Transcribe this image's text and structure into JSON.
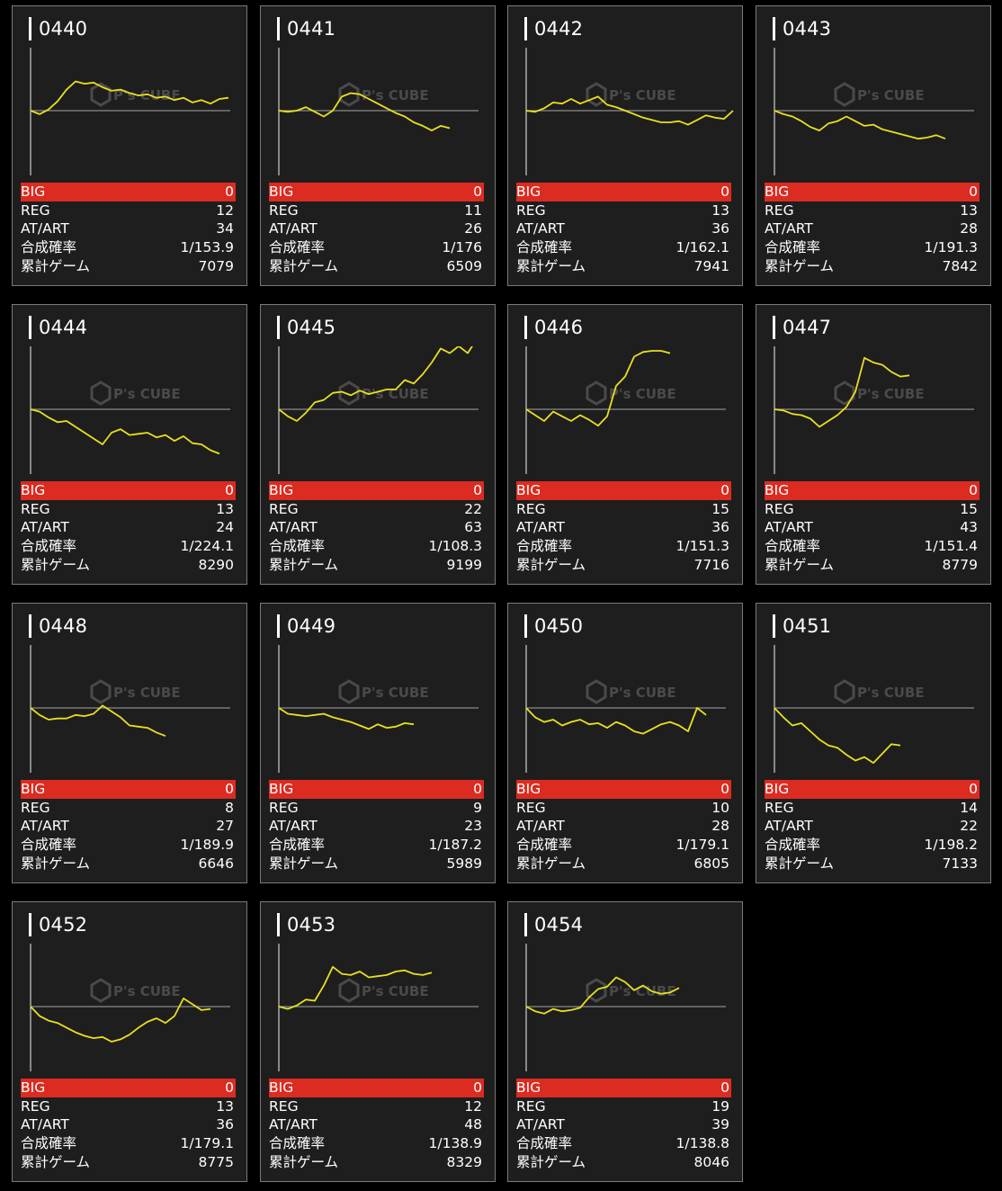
{
  "labels": {
    "big": "BIG",
    "reg": "REG",
    "at_art": "AT/ART",
    "combined_probability": "合成確率",
    "total_games": "累計ゲーム"
  },
  "watermark": {
    "text": "P's CUBE"
  },
  "colors": {
    "background": "#000000",
    "card_background": "#1e1e1e",
    "card_border": "#7a7a7a",
    "big_row": "#dc2b20",
    "graph_line": "#e8e020",
    "baseline": "#8a8a8a",
    "axis": "#cfcfcf"
  },
  "machines": [
    {
      "id": "0440",
      "big": "0",
      "reg": "12",
      "at_art": "34",
      "prob": "1/153.9",
      "games": "7079",
      "trend": [
        0,
        -3,
        1,
        8,
        18,
        25,
        23,
        24,
        20,
        17,
        18,
        15,
        13,
        14,
        11,
        12,
        9,
        11,
        7,
        9,
        6,
        10,
        11
      ]
    },
    {
      "id": "0441",
      "big": "0",
      "reg": "11",
      "at_art": "26",
      "prob": "1/176",
      "games": "6509",
      "trend": [
        0,
        -1,
        0,
        3,
        -1,
        -5,
        0,
        12,
        15,
        14,
        10,
        6,
        2,
        -2,
        -5,
        -10,
        -13,
        -17,
        -13,
        -15
      ]
    },
    {
      "id": "0442",
      "big": "0",
      "reg": "13",
      "at_art": "36",
      "prob": "1/162.1",
      "games": "7941",
      "trend": [
        0,
        -1,
        2,
        7,
        6,
        10,
        6,
        9,
        12,
        5,
        3,
        0,
        -3,
        -6,
        -8,
        -10,
        -10,
        -9,
        -12,
        -8,
        -4,
        -6,
        -7,
        0
      ]
    },
    {
      "id": "0443",
      "big": "0",
      "reg": "13",
      "at_art": "28",
      "prob": "1/191.3",
      "games": "7842",
      "trend": [
        0,
        -3,
        -5,
        -9,
        -14,
        -17,
        -11,
        -9,
        -5,
        -9,
        -13,
        -12,
        -16,
        -18,
        -20,
        -22,
        -24,
        -23,
        -21,
        -24
      ]
    },
    {
      "id": "0444",
      "big": "0",
      "reg": "13",
      "at_art": "24",
      "prob": "1/224.1",
      "games": "8290",
      "trend": [
        0,
        -2,
        -7,
        -11,
        -10,
        -15,
        -20,
        -25,
        -30,
        -20,
        -17,
        -22,
        -21,
        -20,
        -24,
        -22,
        -27,
        -23,
        -29,
        -30,
        -35,
        -38
      ]
    },
    {
      "id": "0445",
      "big": "0",
      "reg": "22",
      "at_art": "63",
      "prob": "1/108.3",
      "games": "9199",
      "trend": [
        0,
        -6,
        -10,
        -3,
        6,
        8,
        14,
        15,
        12,
        16,
        13,
        15,
        17,
        17,
        25,
        22,
        30,
        40,
        52,
        48,
        54,
        48,
        60
      ]
    },
    {
      "id": "0446",
      "big": "0",
      "reg": "15",
      "at_art": "36",
      "prob": "1/151.3",
      "games": "7716",
      "trend": [
        0,
        -5,
        -10,
        -2,
        -6,
        -10,
        -5,
        -9,
        -14,
        -6,
        20,
        28,
        45,
        49,
        50,
        50,
        48
      ]
    },
    {
      "id": "0447",
      "big": "0",
      "reg": "15",
      "at_art": "43",
      "prob": "1/151.4",
      "games": "8779",
      "trend": [
        0,
        -1,
        -4,
        -5,
        -8,
        -15,
        -10,
        -5,
        2,
        15,
        44,
        40,
        38,
        32,
        28,
        29
      ]
    },
    {
      "id": "0448",
      "big": "0",
      "reg": "8",
      "at_art": "27",
      "prob": "1/189.9",
      "games": "6646",
      "trend": [
        0,
        -6,
        -10,
        -9,
        -9,
        -6,
        -7,
        -5,
        2,
        -3,
        -8,
        -15,
        -16,
        -17,
        -21,
        -24
      ]
    },
    {
      "id": "0449",
      "big": "0",
      "reg": "9",
      "at_art": "23",
      "prob": "1/187.2",
      "games": "5989",
      "trend": [
        0,
        -5,
        -6,
        -7,
        -6,
        -5,
        -8,
        -10,
        -12,
        -15,
        -18,
        -14,
        -17,
        -16,
        -13,
        -14
      ]
    },
    {
      "id": "0450",
      "big": "0",
      "reg": "10",
      "at_art": "28",
      "prob": "1/179.1",
      "games": "6805",
      "trend": [
        0,
        -8,
        -12,
        -10,
        -15,
        -12,
        -10,
        -14,
        -13,
        -17,
        -12,
        -15,
        -20,
        -22,
        -18,
        -14,
        -12,
        -15,
        -20,
        0,
        -6
      ]
    },
    {
      "id": "0451",
      "big": "0",
      "reg": "14",
      "at_art": "22",
      "prob": "1/198.2",
      "games": "7133",
      "trend": [
        0,
        -8,
        -15,
        -13,
        -20,
        -27,
        -32,
        -34,
        -40,
        -45,
        -42,
        -47,
        -39,
        -31,
        -32
      ]
    },
    {
      "id": "0452",
      "big": "0",
      "reg": "13",
      "at_art": "36",
      "prob": "1/179.1",
      "games": "8775",
      "trend": [
        0,
        -8,
        -12,
        -14,
        -18,
        -22,
        -25,
        -27,
        -26,
        -30,
        -28,
        -24,
        -18,
        -13,
        -10,
        -14,
        -8,
        7,
        2,
        -3,
        -2
      ]
    },
    {
      "id": "0453",
      "big": "0",
      "reg": "12",
      "at_art": "48",
      "prob": "1/138.9",
      "games": "8329",
      "trend": [
        0,
        -2,
        1,
        6,
        5,
        18,
        34,
        28,
        27,
        30,
        25,
        26,
        27,
        30,
        31,
        28,
        27,
        29
      ]
    },
    {
      "id": "0454",
      "big": "0",
      "reg": "19",
      "at_art": "39",
      "prob": "1/138.8",
      "games": "8046",
      "trend": [
        0,
        -4,
        -6,
        -2,
        -4,
        -3,
        -1,
        8,
        15,
        17,
        25,
        21,
        14,
        18,
        13,
        11,
        12,
        16
      ]
    }
  ]
}
